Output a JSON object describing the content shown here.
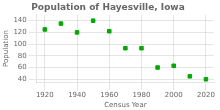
{
  "chart_data": {
    "type": "scatter",
    "title": "Population of Hayesville, Iowa",
    "xlabel": "Census Year",
    "ylabel": "Population",
    "x": [
      1920,
      1930,
      1940,
      1950,
      1960,
      1970,
      1980,
      1990,
      2000,
      2010,
      2020
    ],
    "values": [
      125,
      135,
      120,
      140,
      122,
      93,
      93,
      60,
      63,
      45,
      40
    ],
    "color": "#00aa00",
    "marker": "square",
    "xlim": [
      1915,
      2025
    ],
    "ylim": [
      35,
      150
    ],
    "xticks": [
      1920,
      1940,
      1960,
      1980,
      2000,
      2020
    ],
    "yticks": [
      40,
      60,
      80,
      100,
      120,
      140
    ],
    "grid": true
  }
}
